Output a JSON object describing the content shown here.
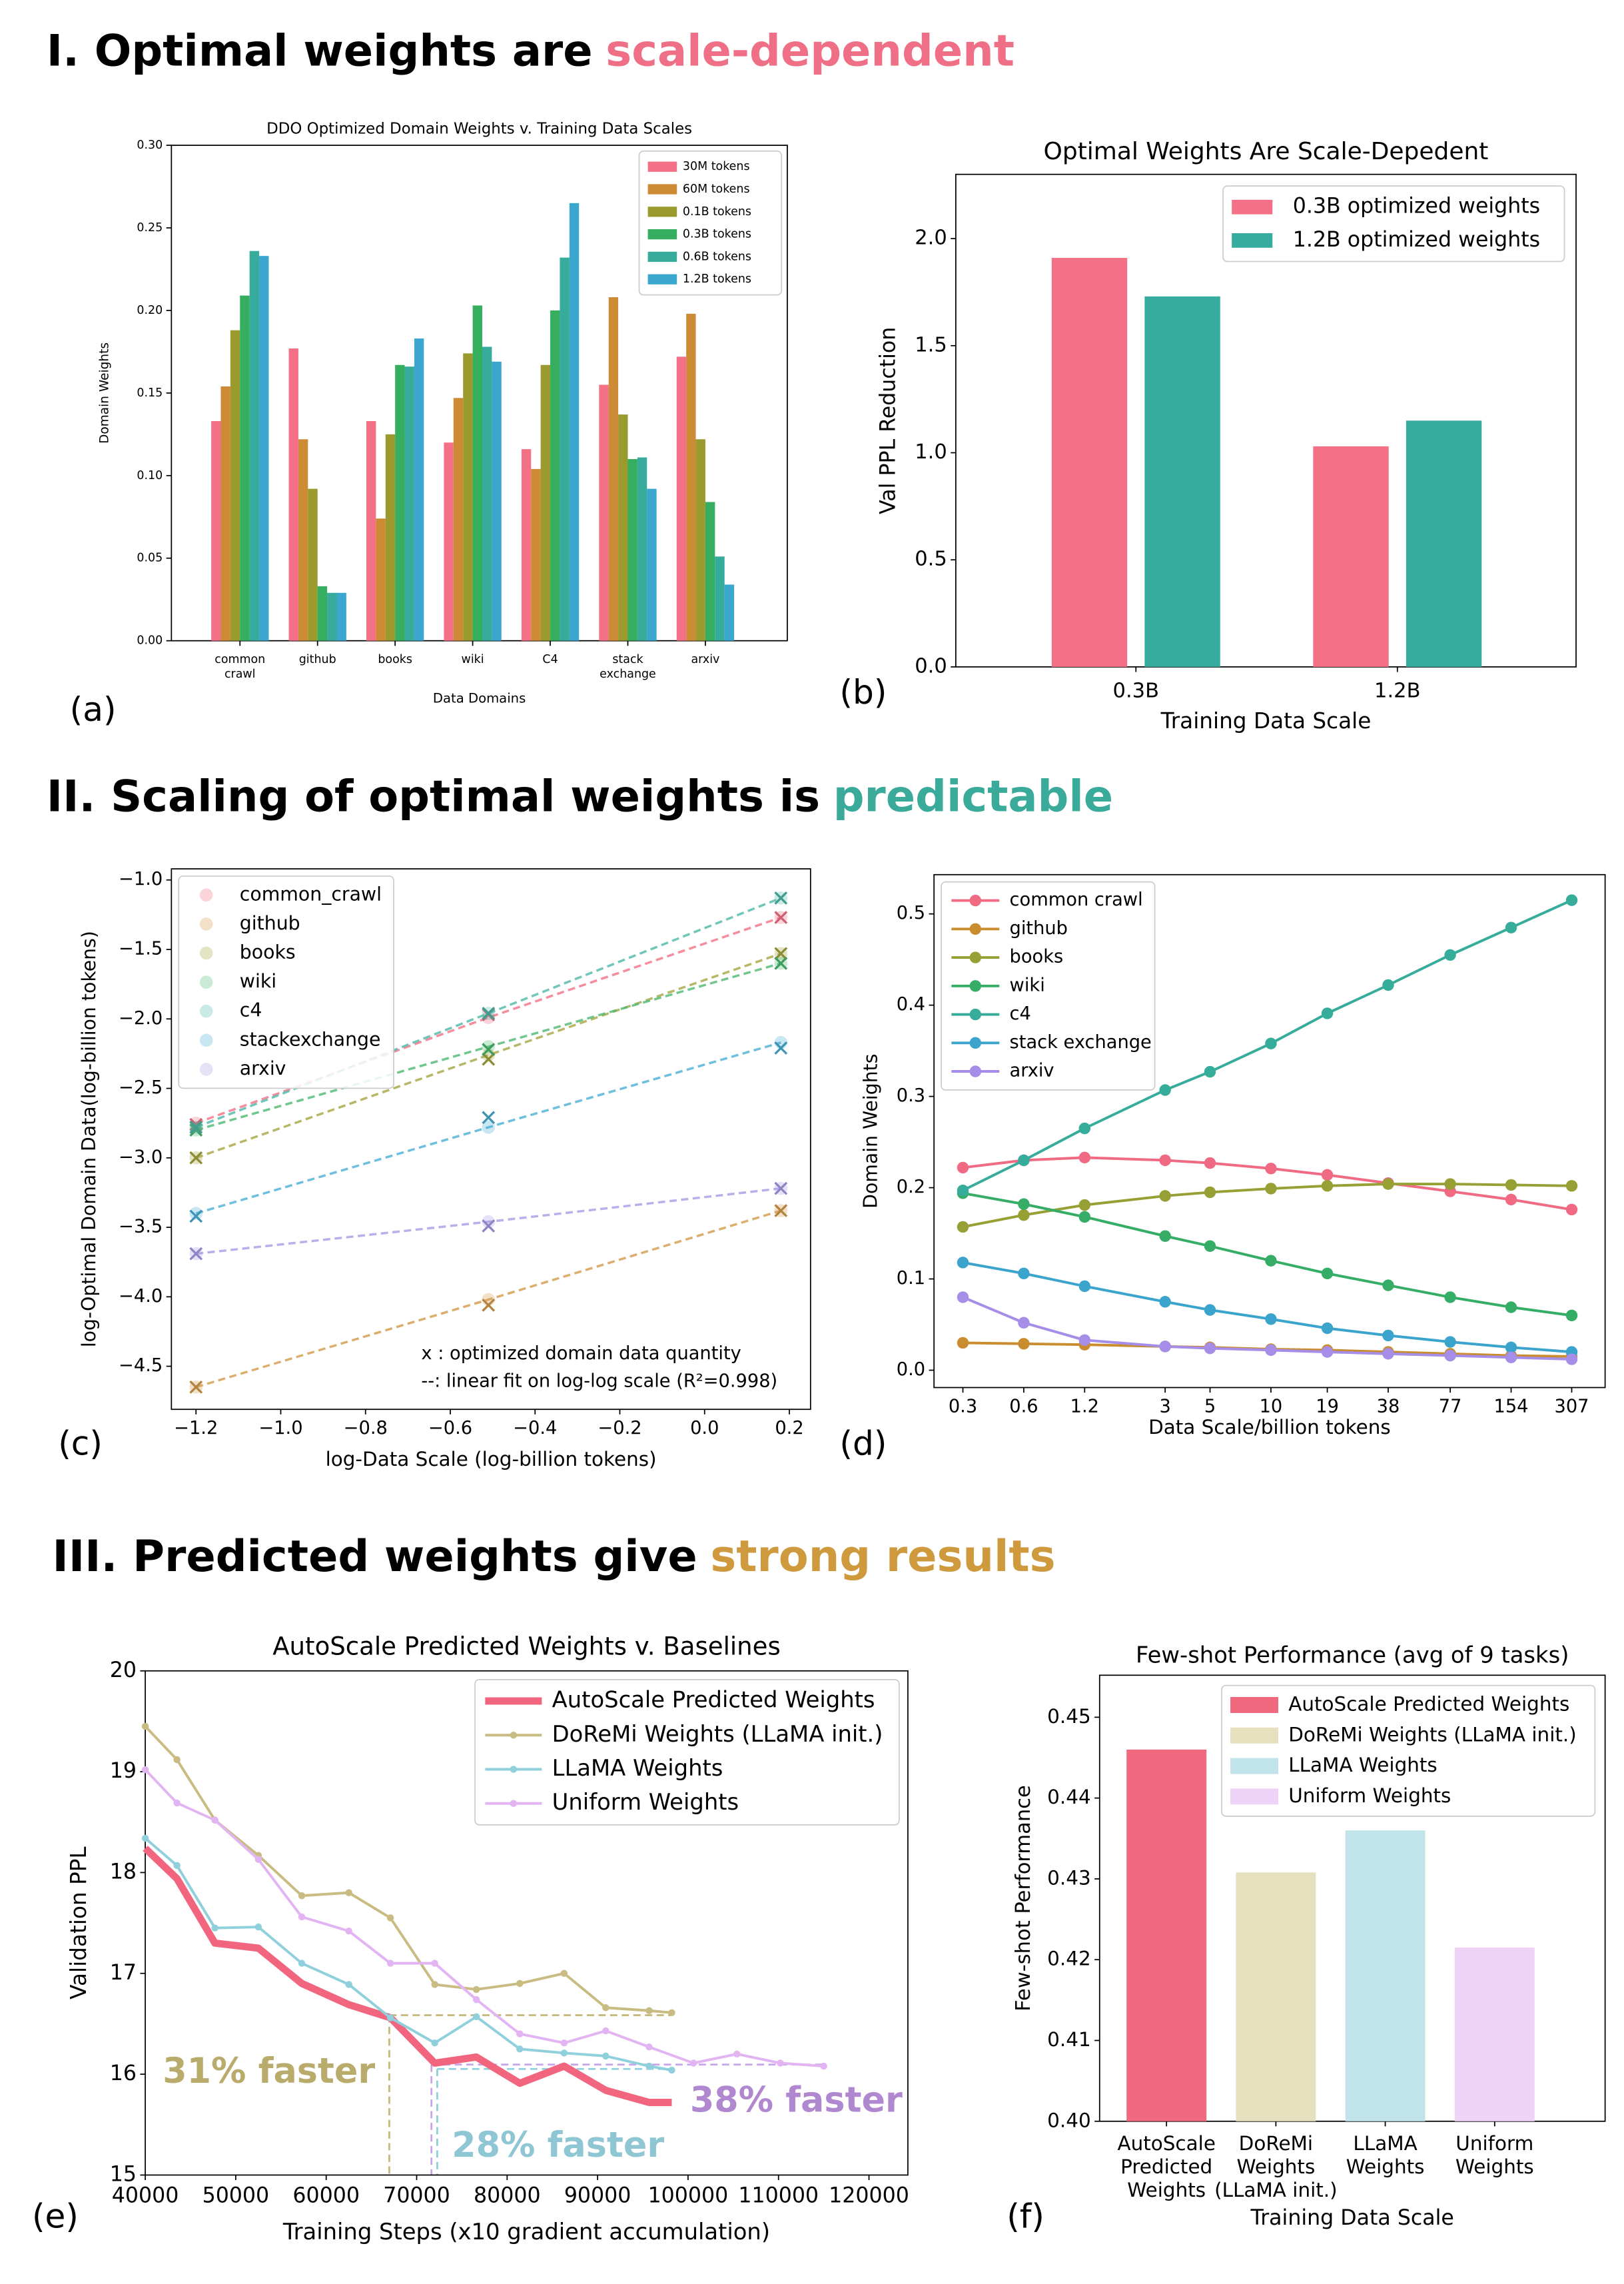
{
  "headings": [
    {
      "text": "I. Optimal weights are",
      "highlight": "scale-dependent",
      "color": "#ef6f86"
    },
    {
      "text": "II. Scaling of optimal weights is",
      "highlight": "predictable",
      "color": "#3aaa9b"
    },
    {
      "text": "III. Predicted weights give",
      "highlight": "strong results",
      "color": "#cf9a3e"
    }
  ],
  "chart_data": [
    {
      "type": "bar",
      "panel": "(a)",
      "title": "DDO Optimized Domain Weights v. Training Data Scales",
      "xlabel": "Data Domains",
      "ylabel": "Domain Weights",
      "categories": [
        [
          "common",
          "crawl"
        ],
        [
          "github"
        ],
        [
          "books"
        ],
        [
          "wiki"
        ],
        [
          "C4"
        ],
        [
          "stack",
          "exchange"
        ],
        [
          "arxiv"
        ]
      ],
      "series": [
        {
          "name": "30M tokens",
          "color": "#f37086",
          "values": [
            0.133,
            0.177,
            0.133,
            0.12,
            0.116,
            0.155,
            0.172
          ]
        },
        {
          "name": "60M tokens",
          "color": "#cd8b35",
          "values": [
            0.154,
            0.122,
            0.074,
            0.147,
            0.104,
            0.208,
            0.198
          ]
        },
        {
          "name": "0.1B tokens",
          "color": "#9a9a2f",
          "values": [
            0.188,
            0.092,
            0.125,
            0.174,
            0.167,
            0.137,
            0.122
          ]
        },
        {
          "name": "0.3B tokens",
          "color": "#35ae60",
          "values": [
            0.209,
            0.033,
            0.167,
            0.203,
            0.2,
            0.11,
            0.084
          ]
        },
        {
          "name": "0.6B tokens",
          "color": "#38ac9c",
          "values": [
            0.236,
            0.029,
            0.166,
            0.178,
            0.232,
            0.111,
            0.051
          ]
        },
        {
          "name": "1.2B tokens",
          "color": "#3ba7cf",
          "values": [
            0.233,
            0.029,
            0.183,
            0.169,
            0.265,
            0.092,
            0.034
          ]
        }
      ],
      "ylim": [
        0,
        0.3
      ],
      "yticks": [
        {
          "value": 0,
          "label": "0.00"
        },
        {
          "value": 0.05,
          "label": "0.05"
        },
        {
          "value": 0.1,
          "label": "0.10"
        },
        {
          "value": 0.15,
          "label": "0.15"
        },
        {
          "value": 0.2,
          "label": "0.20"
        },
        {
          "value": 0.25,
          "label": "0.25"
        },
        {
          "value": 0.3,
          "label": "0.30"
        }
      ],
      "legend": "upper right"
    },
    {
      "type": "bar",
      "panel": "(b)",
      "title": "Optimal Weights Are Scale-Depedent",
      "xlabel": "Training Data Scale",
      "ylabel": "Val PPL Reduction",
      "categories": [
        [
          "0.3B"
        ],
        [
          "1.2B"
        ]
      ],
      "series": [
        {
          "name": "0.3B optimized weights",
          "color": "#f37086",
          "values": [
            1.91,
            1.03
          ]
        },
        {
          "name": "1.2B optimized weights",
          "color": "#36ab9f",
          "values": [
            1.73,
            1.15
          ]
        }
      ],
      "ylim": [
        0,
        2.3
      ],
      "yticks": [
        {
          "value": 0,
          "label": "0.0"
        },
        0.5,
        {
          "value": 1,
          "label": "1.0"
        },
        1.5,
        {
          "value": 2,
          "label": "2.0"
        }
      ],
      "legend": "upper right"
    },
    {
      "type": "scatter",
      "panel": "(c)",
      "xlabel": "log-Data Scale (log-billion tokens)",
      "ylabel": "log-Optimal Domain Data(log-billion tokens)",
      "x": [
        -1.2,
        -0.51,
        0.18
      ],
      "series": [
        {
          "name": "common_crawl",
          "color": "#f37086",
          "values": [
            -2.76,
            -1.97,
            -1.27
          ],
          "fit": [
            -2.75,
            -1.99,
            -1.27
          ]
        },
        {
          "name": "github",
          "color": "#d39a4a",
          "values": [
            -4.65,
            -4.06,
            -3.38
          ],
          "fit": [
            -4.65,
            -4.02,
            -3.38
          ]
        },
        {
          "name": "books",
          "color": "#a5a540",
          "values": [
            -3.0,
            -2.29,
            -1.53
          ],
          "fit": [
            -3.0,
            -2.26,
            -1.53
          ]
        },
        {
          "name": "wiki",
          "color": "#4cb870",
          "values": [
            -2.8,
            -2.22,
            -1.6
          ],
          "fit": [
            -2.8,
            -2.2,
            -1.6
          ]
        },
        {
          "name": "c4",
          "color": "#4cb8a8",
          "values": [
            -2.78,
            -1.96,
            -1.13
          ],
          "fit": [
            -2.78,
            -1.96,
            -1.13
          ]
        },
        {
          "name": "stackexchange",
          "color": "#4aaed5",
          "values": [
            -3.42,
            -2.71,
            -2.21
          ],
          "fit": [
            -3.4,
            -2.78,
            -2.17
          ]
        },
        {
          "name": "arxiv",
          "color": "#a99ae6",
          "values": [
            -3.69,
            -3.49,
            -3.22
          ],
          "fit": [
            -3.69,
            -3.46,
            -3.22
          ]
        }
      ],
      "xlim": [
        -1.258,
        0.25
      ],
      "xticks": [
        {
          "value": -1.2,
          "label": "−1.2"
        },
        {
          "value": -1.0,
          "label": "−1.0"
        },
        {
          "value": -0.8,
          "label": "−0.8"
        },
        {
          "value": -0.6,
          "label": "−0.6"
        },
        {
          "value": -0.4,
          "label": "−0.4"
        },
        {
          "value": -0.2,
          "label": "−0.2"
        },
        {
          "value": 0,
          "label": "0.0"
        },
        0.2
      ],
      "ylim": [
        -4.81,
        -0.92
      ],
      "yticks": [
        {
          "value": -4.5,
          "label": "−4.5"
        },
        {
          "value": -4.0,
          "label": "−4.0"
        },
        {
          "value": -3.5,
          "label": "−3.5"
        },
        {
          "value": -3.0,
          "label": "−3.0"
        },
        {
          "value": -2.5,
          "label": "−2.5"
        },
        {
          "value": -2.0,
          "label": "−2.0"
        },
        {
          "value": -1.5,
          "label": "−1.5"
        },
        {
          "value": -1.0,
          "label": "−1.0"
        }
      ],
      "legend": "upper left",
      "annotations": [
        "x : optimized domain data quantity",
        "--: linear fit on log-log scale (R²=0.998)"
      ]
    },
    {
      "type": "line",
      "panel": "(d)",
      "xlabel": "Data Scale/billion tokens",
      "ylabel": "Domain Weights",
      "xscale": "log",
      "x": [
        0.3,
        0.6,
        1.2,
        3,
        5,
        10,
        19,
        38,
        77,
        154,
        307
      ],
      "series": [
        {
          "name": "common crawl",
          "color": "#ef6a82",
          "values": [
            0.222,
            0.23,
            0.233,
            0.23,
            0.227,
            0.221,
            0.214,
            0.205,
            0.196,
            0.187,
            0.176
          ]
        },
        {
          "name": "github",
          "color": "#c98c2f",
          "values": [
            0.03,
            0.029,
            0.028,
            0.026,
            0.025,
            0.023,
            0.022,
            0.02,
            0.018,
            0.016,
            0.015
          ]
        },
        {
          "name": "books",
          "color": "#97a034",
          "values": [
            0.157,
            0.17,
            0.181,
            0.191,
            0.195,
            0.199,
            0.202,
            0.204,
            0.204,
            0.203,
            0.202
          ]
        },
        {
          "name": "wiki",
          "color": "#36ad66",
          "values": [
            0.194,
            0.182,
            0.168,
            0.147,
            0.136,
            0.12,
            0.106,
            0.093,
            0.08,
            0.069,
            0.06
          ]
        },
        {
          "name": "c4",
          "color": "#36ad9a",
          "values": [
            0.197,
            0.23,
            0.265,
            0.307,
            0.327,
            0.358,
            0.391,
            0.422,
            0.455,
            0.485,
            0.515
          ]
        },
        {
          "name": "stack exchange",
          "color": "#3aa4cc",
          "values": [
            0.118,
            0.106,
            0.092,
            0.075,
            0.066,
            0.056,
            0.046,
            0.038,
            0.031,
            0.025,
            0.02
          ]
        },
        {
          "name": "arxiv",
          "color": "#a58de8",
          "values": [
            0.08,
            0.052,
            0.033,
            0.026,
            0.024,
            0.022,
            0.02,
            0.018,
            0.016,
            0.014,
            0.012
          ]
        }
      ],
      "xlim": [
        0.216,
        449
      ],
      "xticks": [
        0.3,
        0.6,
        1.2,
        3,
        5,
        10,
        19,
        38,
        77,
        154,
        307
      ],
      "ylim": [
        -0.019,
        0.543
      ],
      "yticks": [
        {
          "value": 0,
          "label": "0.0"
        },
        0.1,
        0.2,
        0.3,
        0.4,
        0.5
      ],
      "legend": "upper left"
    },
    {
      "type": "line",
      "panel": "(e)",
      "title": "AutoScale Predicted Weights v. Baselines",
      "xlabel": "Training Steps (x10 gradient accumulation)",
      "ylabel": "Validation PPL",
      "series": [
        {
          "name": "AutoScale Predicted Weights",
          "color": "#f2657f",
          "linewidth": 5,
          "x": [
            40000,
            43500,
            47700,
            52500,
            57300,
            62500,
            67100,
            72000,
            76600,
            81400,
            86300,
            90900,
            95700,
            98200
          ],
          "values": [
            18.24,
            17.94,
            17.3,
            17.25,
            16.9,
            16.69,
            16.56,
            16.11,
            16.17,
            15.91,
            16.08,
            15.84,
            15.72,
            15.72
          ]
        },
        {
          "name": "DoReMi Weights (LLaMA init.)",
          "color": "#c9bc82",
          "linewidth": 1.8,
          "x": [
            40000,
            43500,
            47700,
            52500,
            57300,
            62500,
            67100,
            72000,
            76600,
            81400,
            86300,
            90900,
            95700,
            98200
          ],
          "values": [
            19.45,
            19.12,
            18.52,
            18.17,
            17.77,
            17.8,
            17.55,
            16.89,
            16.84,
            16.9,
            17.0,
            16.66,
            16.63,
            16.61
          ]
        },
        {
          "name": "LLaMA Weights",
          "color": "#8fd0dc",
          "linewidth": 1.8,
          "x": [
            40000,
            43500,
            47700,
            52500,
            57300,
            62500,
            67100,
            72000,
            76600,
            81400,
            86300,
            90900,
            95700,
            98200
          ],
          "values": [
            18.34,
            18.07,
            17.45,
            17.46,
            17.1,
            16.89,
            16.56,
            16.31,
            16.57,
            16.25,
            16.21,
            16.18,
            16.08,
            16.04
          ]
        },
        {
          "name": "Uniform Weights",
          "color": "#e2b5f2",
          "linewidth": 1.8,
          "x": [
            40000,
            43500,
            47700,
            52500,
            57300,
            62500,
            67100,
            72000,
            76600,
            81400,
            86300,
            90900,
            95700,
            100600,
            105400,
            110200,
            115000
          ],
          "values": [
            19.02,
            18.69,
            18.52,
            18.13,
            17.56,
            17.42,
            17.1,
            17.1,
            16.74,
            16.4,
            16.31,
            16.43,
            16.27,
            16.11,
            16.2,
            16.11,
            16.08
          ]
        }
      ],
      "xlim": [
        40000,
        124300
      ],
      "xticks": [
        40000,
        50000,
        60000,
        70000,
        80000,
        90000,
        100000,
        110000,
        120000
      ],
      "ylim": [
        15,
        20
      ],
      "yticks": [
        15,
        16,
        17,
        18,
        19,
        20
      ],
      "legend": "upper right",
      "annotations": [
        {
          "text": "31% faster",
          "color": "#b8ab6c"
        },
        {
          "text": "28% faster",
          "color": "#8ec7d3"
        },
        {
          "text": "38% faster",
          "color": "#b088d0"
        }
      ]
    },
    {
      "type": "bar",
      "panel": "(f)",
      "title": "Few-shot Performance (avg of 9 tasks)",
      "xlabel": "Training Data Scale",
      "ylabel": "Few-shot Performance",
      "categories": [
        [
          "AutoScale",
          "Predicted",
          "Weights"
        ],
        [
          "DoReMi",
          "Weights",
          "(LLaMA init.)"
        ],
        [
          "LLaMA",
          "Weights"
        ],
        [
          "Uniform",
          "Weights"
        ]
      ],
      "values": [
        0.446,
        0.4308,
        0.436,
        0.4215
      ],
      "colors": [
        "#f0697f",
        "#e6e0bf",
        "#c0e4ea",
        "#efd3f7"
      ],
      "legend_names": [
        "AutoScale Predicted Weights",
        "DoReMi Weights (LLaMA init.)",
        "LLaMA Weights",
        "Uniform Weights"
      ],
      "ylim": [
        0.4,
        0.4552
      ],
      "yticks": [
        {
          "value": 0.4,
          "label": "0.40"
        },
        0.41,
        0.42,
        0.43,
        0.44,
        0.45
      ],
      "legend": "upper right"
    }
  ]
}
